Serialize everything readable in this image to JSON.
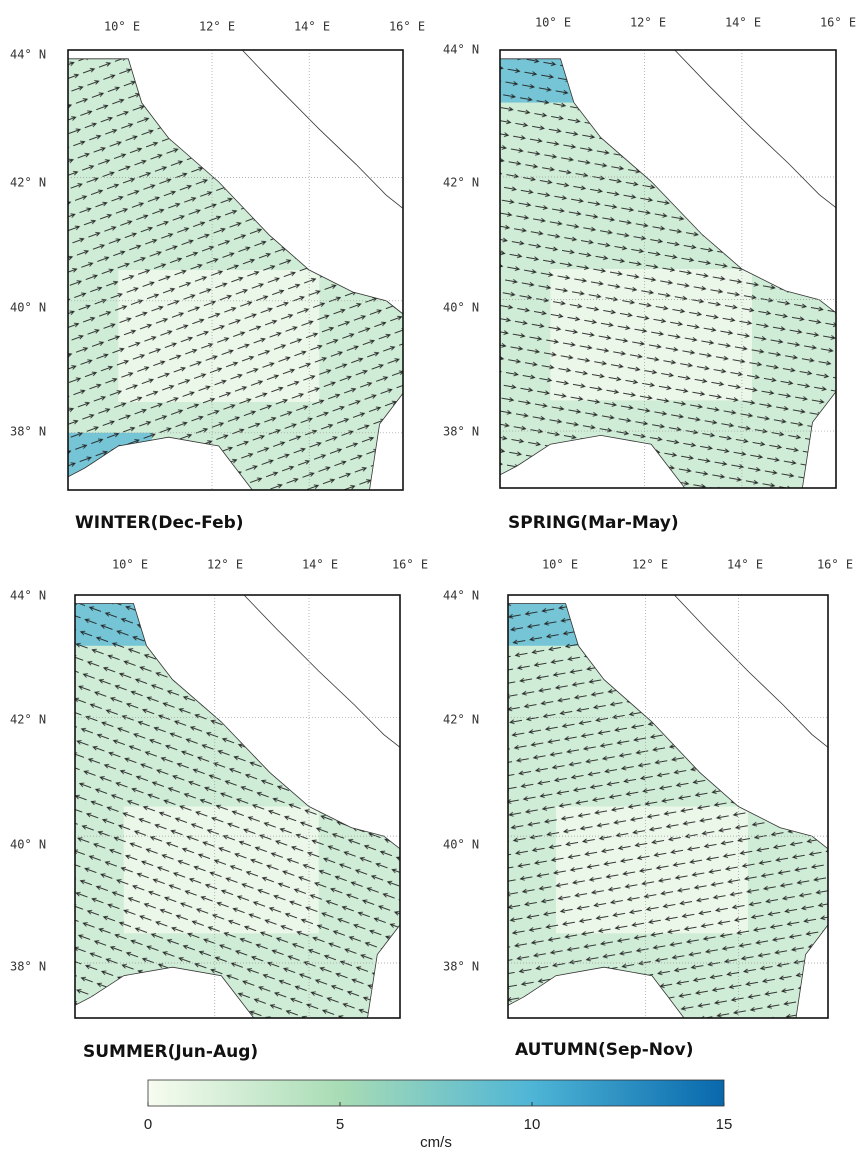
{
  "panels": [
    {
      "title": "WINTER(Dec-Feb)",
      "lon_labels": [
        "10° E",
        "12° E",
        "14° E",
        "16° E"
      ],
      "lat_labels": [
        "44° N",
        "42° N",
        "40° N",
        "38° N"
      ]
    },
    {
      "title": "SPRING(Mar-May)",
      "lon_labels": [
        "10° E",
        "12° E",
        "14° E",
        "16° E"
      ],
      "lat_labels": [
        "44° N",
        "42° N",
        "40° N",
        "38° N"
      ]
    },
    {
      "title": "SUMMER(Jun-Aug)",
      "lon_labels": [
        "10° E",
        "12° E",
        "14° E",
        "16° E"
      ],
      "lat_labels": [
        "44° N",
        "42° N",
        "40° N",
        "38° N"
      ]
    },
    {
      "title": "AUTUMN(Sep-Nov)",
      "lon_labels": [
        "10° E",
        "12° E",
        "14° E",
        "16° E"
      ],
      "lat_labels": [
        "44° N",
        "42° N",
        "40° N",
        "38° N"
      ]
    }
  ],
  "colorbar": {
    "lim": [
      0,
      15
    ],
    "ticks": [
      0,
      5,
      10,
      15
    ],
    "label": "cm/s",
    "colors": [
      "#f7fcf0",
      "#a8dcb5",
      "#4fb5d6",
      "#0868ac"
    ]
  }
}
